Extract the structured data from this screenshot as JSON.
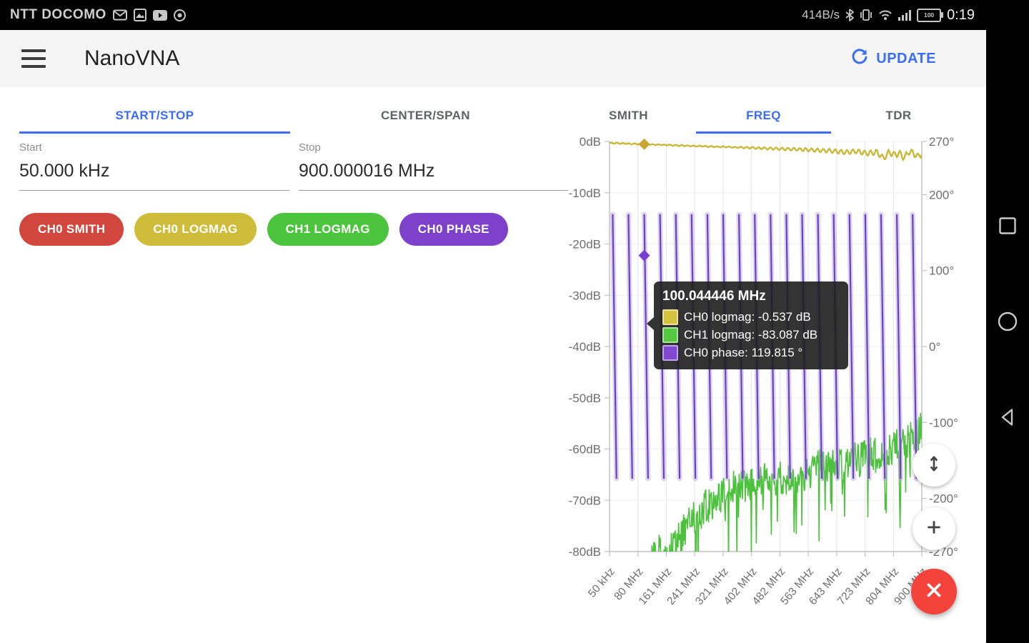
{
  "status_bar": {
    "carrier": "NTT DOCOMO",
    "notification_icons": [
      "mail-icon",
      "photos-icon",
      "youtube-icon",
      "browser-icon"
    ],
    "network_speed": "414B/s",
    "system_icons": [
      "bluetooth-icon",
      "vibrate-icon",
      "wifi-icon",
      "signal-icon"
    ],
    "battery_percent": "100",
    "time": "0:19"
  },
  "app_bar": {
    "title": "NanoVNA",
    "update_label": "UPDATE"
  },
  "tabs": {
    "left": [
      {
        "label": "START/STOP",
        "active": true
      },
      {
        "label": "CENTER/SPAN",
        "active": false
      }
    ],
    "right": [
      {
        "label": "SMITH",
        "active": false
      },
      {
        "label": "FREQ",
        "active": true
      },
      {
        "label": "TDR",
        "active": false
      }
    ]
  },
  "form": {
    "start": {
      "label": "Start",
      "value": "50.000 kHz"
    },
    "stop": {
      "label": "Stop",
      "value": "900.000016 MHz"
    }
  },
  "trace_chips": [
    {
      "label": "CH0 SMITH",
      "color": "#d2473d"
    },
    {
      "label": "CH0 LOGMAG",
      "color": "#cfbc3b"
    },
    {
      "label": "CH1 LOGMAG",
      "color": "#4cc43e"
    },
    {
      "label": "CH0 PHASE",
      "color": "#7d41ca"
    }
  ],
  "chart_data": {
    "type": "line",
    "x_axis": {
      "tick_labels": [
        "50 kHz",
        "80 MHz",
        "161 MHz",
        "241 MHz",
        "321 MHz",
        "402 MHz",
        "482 MHz",
        "563 MHz",
        "643 MHz",
        "723 MHz",
        "804 MHz",
        "900 MHz"
      ],
      "range_mhz": [
        0.05,
        900
      ]
    },
    "y_axis_left": {
      "tick_labels": [
        "0dB",
        "-10dB",
        "-20dB",
        "-30dB",
        "-40dB",
        "-50dB",
        "-60dB",
        "-70dB",
        "-80dB"
      ],
      "tick_values_db": [
        0,
        -10,
        -20,
        -30,
        -40,
        -50,
        -60,
        -70,
        -80
      ],
      "range_db": [
        0,
        -80
      ]
    },
    "y_axis_right": {
      "tick_labels": [
        "270°",
        "200°",
        "100°",
        "0°",
        "-100°",
        "-200°",
        "-270°"
      ],
      "tick_values_deg": [
        270,
        200,
        100,
        0,
        -100,
        -200,
        -270
      ],
      "range_deg": [
        270,
        -270
      ]
    },
    "series": [
      {
        "name": "CH0 logmag",
        "axis": "left",
        "color": "#c9b837",
        "points_mhz_db": [
          [
            0,
            -0.3
          ],
          [
            50,
            -0.42
          ],
          [
            100,
            -0.54
          ],
          [
            150,
            -0.65
          ],
          [
            200,
            -0.78
          ],
          [
            250,
            -0.9
          ],
          [
            300,
            -1.0
          ],
          [
            350,
            -1.1
          ],
          [
            400,
            -1.22
          ],
          [
            450,
            -1.35
          ],
          [
            500,
            -1.45
          ],
          [
            550,
            -1.55
          ],
          [
            600,
            -1.7
          ],
          [
            640,
            -1.85
          ],
          [
            680,
            -2.1
          ],
          [
            710,
            -1.9
          ],
          [
            740,
            -2.3
          ],
          [
            770,
            -2.1
          ],
          [
            790,
            -3.3
          ],
          [
            805,
            -2.1
          ],
          [
            820,
            -2.6
          ],
          [
            835,
            -2.3
          ],
          [
            850,
            -3.2
          ],
          [
            862,
            -2.0
          ],
          [
            875,
            -2.2
          ],
          [
            888,
            -3.0
          ],
          [
            900,
            -2.3
          ]
        ],
        "ripple": {
          "start_mhz": 350,
          "max_amplitude_db": 0.55,
          "period_mhz": 17
        }
      },
      {
        "name": "CH1 logmag",
        "axis": "left",
        "color": "#4cc13c",
        "envelope_mhz_db": [
          [
            95,
            -85
          ],
          [
            120,
            -81
          ],
          [
            140,
            -79.5
          ],
          [
            160,
            -81
          ],
          [
            185,
            -79
          ],
          [
            215,
            -76
          ],
          [
            245,
            -73.5
          ],
          [
            275,
            -71.5
          ],
          [
            305,
            -70
          ],
          [
            335,
            -68.5
          ],
          [
            365,
            -67.5
          ],
          [
            395,
            -67
          ],
          [
            425,
            -66.5
          ],
          [
            455,
            -66
          ],
          [
            485,
            -65.5
          ],
          [
            515,
            -65.5
          ],
          [
            545,
            -66
          ],
          [
            575,
            -64.5
          ],
          [
            605,
            -63.5
          ],
          [
            635,
            -62.5
          ],
          [
            665,
            -63
          ],
          [
            695,
            -62.5
          ],
          [
            725,
            -62
          ],
          [
            755,
            -61
          ],
          [
            785,
            -61.5
          ],
          [
            815,
            -60
          ],
          [
            845,
            -59
          ],
          [
            875,
            -57.5
          ],
          [
            900,
            -56
          ]
        ],
        "noise_spread_db": 7,
        "downspike_chance": 0.07,
        "downspike_db": 9
      },
      {
        "name": "CH0 phase",
        "axis": "right",
        "color": "#6d3fc3",
        "halo_color": "#b39ddb",
        "wrap_sawtooth": {
          "count": 20,
          "first_top_mhz": 9,
          "period_mhz": 45.5,
          "top_deg": 174,
          "bottom_deg": -174,
          "lean_mhz": 11
        }
      }
    ],
    "marker": {
      "freq_mhz": 100.044446,
      "ch0_logmag_db": -0.537,
      "ch1_logmag_db": -83.087,
      "ch0_phase_deg": 119.815,
      "ch0_logmag_marker_color": "#c9a62f",
      "ch0_phase_marker_color": "#7b3ed2"
    },
    "tooltip": {
      "title": "100.044446 MHz",
      "rows": [
        {
          "swatch_color": "#d4c33c",
          "text": "CH0 logmag: -0.537 dB"
        },
        {
          "swatch_color": "#55c83f",
          "text": "CH1 logmag: -83.087 dB"
        },
        {
          "swatch_color": "#8248d0",
          "text": "CH0 phase: 119.815 °"
        }
      ]
    }
  },
  "fab_buttons": [
    {
      "name": "resize-vertical",
      "icon": "resize-vertical-icon",
      "color": "#ffffff"
    },
    {
      "name": "zoom-in",
      "icon": "plus-icon",
      "color": "#ffffff"
    },
    {
      "name": "close",
      "icon": "close-icon",
      "color": "#f4433a"
    }
  ],
  "nav_bar": {
    "icons": [
      "recents-icon",
      "home-icon",
      "back-icon"
    ]
  }
}
